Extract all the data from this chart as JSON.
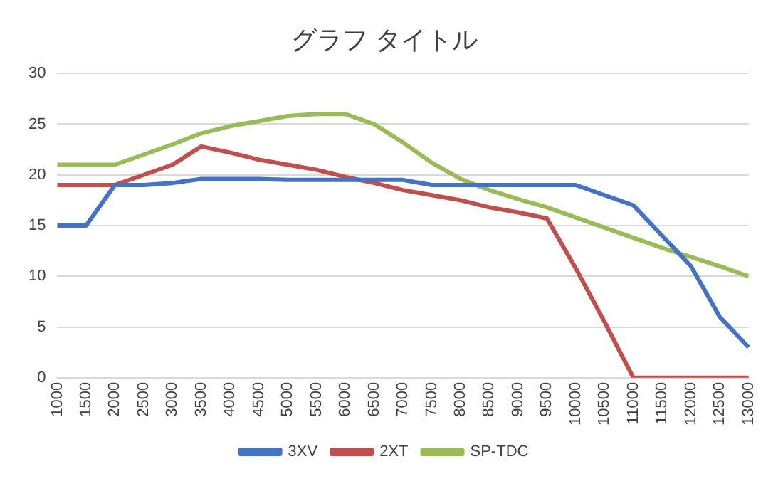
{
  "chart_data": {
    "type": "line",
    "title": "グラフ タイトル",
    "categories": [
      "1000",
      "1500",
      "2000",
      "2500",
      "3000",
      "3500",
      "4000",
      "4500",
      "5000",
      "5500",
      "6000",
      "6500",
      "7000",
      "7500",
      "8000",
      "8500",
      "9000",
      "9500",
      "10000",
      "10500",
      "11000",
      "11500",
      "12000",
      "12500",
      "13000"
    ],
    "series": [
      {
        "name": "3XV",
        "color": "#4472c4",
        "values": [
          15,
          15,
          19,
          19,
          19.2,
          19.6,
          19.6,
          19.6,
          19.5,
          19.5,
          19.5,
          19.5,
          19.5,
          19,
          19,
          19,
          19,
          19,
          19,
          18,
          17,
          14,
          11,
          6,
          3
        ]
      },
      {
        "name": "2XT",
        "color": "#c0504d",
        "values": [
          19,
          19,
          19,
          20,
          21,
          22.8,
          22.2,
          21.5,
          21,
          20.5,
          19.8,
          19.2,
          18.5,
          18,
          17.5,
          16.8,
          16.3,
          15.7,
          10.8,
          5.5,
          0,
          0,
          0,
          0,
          0
        ]
      },
      {
        "name": "SP-TDC",
        "color": "#9bbb59",
        "values": [
          21,
          21,
          21,
          22,
          23,
          24.1,
          24.8,
          25.3,
          25.8,
          26,
          26,
          25,
          23.2,
          21.2,
          19.6,
          18.5,
          17.6,
          16.8,
          15.8,
          14.8,
          13.8,
          12.8,
          11.9,
          11,
          10
        ]
      }
    ],
    "ylim": [
      0,
      30
    ],
    "yticks": [
      0,
      5,
      10,
      15,
      20,
      25,
      30
    ],
    "grid": "y",
    "legend": "bottom",
    "marker": "none",
    "line_style": "solid"
  }
}
